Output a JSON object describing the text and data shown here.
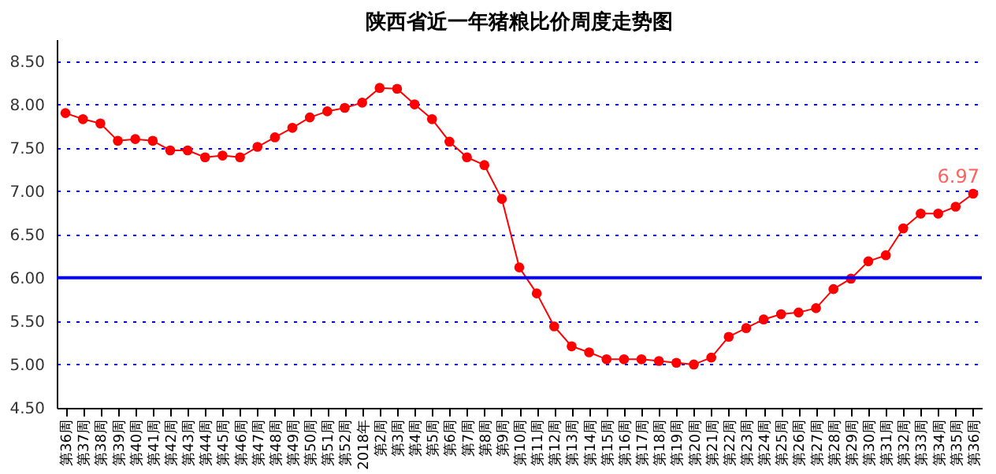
{
  "chart_data": {
    "type": "line",
    "title": "陕西省近一年猪粮比价周度走势图",
    "categories": [
      "第36周",
      "第37周",
      "第38周",
      "第39周",
      "第40周",
      "第41周",
      "第42周",
      "第43周",
      "第44周",
      "第45周",
      "第46周",
      "第47周",
      "第48周",
      "第49周",
      "第50周",
      "第51周",
      "第52周",
      "2018年",
      "第2周",
      "第3周",
      "第4周",
      "第5周",
      "第6周",
      "第7周",
      "第8周",
      "第9周",
      "第10周",
      "第11周",
      "第12周",
      "第13周",
      "第14周",
      "第15周",
      "第16周",
      "第17周",
      "第18周",
      "第19周",
      "第20周",
      "第21周",
      "第22周",
      "第23周",
      "第24周",
      "第25周",
      "第26周",
      "第27周",
      "第28周",
      "第29周",
      "第30周",
      "第31周",
      "第32周",
      "第33周",
      "第34周",
      "第35周",
      "第36周"
    ],
    "series": [
      {
        "color": "#ff0000",
        "values": [
          7.9,
          7.83,
          7.78,
          7.58,
          7.6,
          7.58,
          7.47,
          7.47,
          7.39,
          7.41,
          7.39,
          7.51,
          7.62,
          7.73,
          7.85,
          7.92,
          7.96,
          8.02,
          8.19,
          8.18,
          8.0,
          7.83,
          7.57,
          7.39,
          7.3,
          6.91,
          6.12,
          5.82,
          5.44,
          5.21,
          5.14,
          5.06,
          5.06,
          5.06,
          5.04,
          5.02,
          5.0,
          5.08,
          5.32,
          5.42,
          5.52,
          5.58,
          5.6,
          5.65,
          5.87,
          5.99,
          6.19,
          6.26,
          6.57,
          6.74,
          6.74,
          6.82,
          6.97
        ],
        "value_labels": [
          null,
          null,
          null,
          null,
          null,
          null,
          null,
          null,
          null,
          null,
          null,
          null,
          null,
          null,
          null,
          null,
          null,
          null,
          null,
          null,
          null,
          null,
          null,
          null,
          null,
          null,
          null,
          null,
          null,
          null,
          null,
          null,
          null,
          null,
          null,
          null,
          null,
          null,
          null,
          null,
          null,
          null,
          null,
          null,
          null,
          null,
          null,
          null,
          null,
          null,
          null,
          null,
          "6.97"
        ]
      }
    ],
    "ylim": [
      4.5,
      8.75
    ],
    "yticks": [
      {
        "value": 4.5,
        "label": "4.50"
      },
      {
        "value": 5,
        "label": "5.00"
      },
      {
        "value": 5.5,
        "label": "5.50"
      },
      {
        "value": 6,
        "label": "6.00"
      },
      {
        "value": 6.5,
        "label": "6.50"
      },
      {
        "value": 7,
        "label": "7.00"
      },
      {
        "value": 7.5,
        "label": "7.50"
      },
      {
        "value": 8,
        "label": "8.00"
      },
      {
        "value": 8.5,
        "label": "8.50"
      }
    ],
    "ref_lines": [
      {
        "axis": "y",
        "value": 6,
        "color": "#0000ff",
        "line_style": "solid"
      }
    ],
    "grid": "y",
    "marker": "circle",
    "line_style": "solid"
  }
}
